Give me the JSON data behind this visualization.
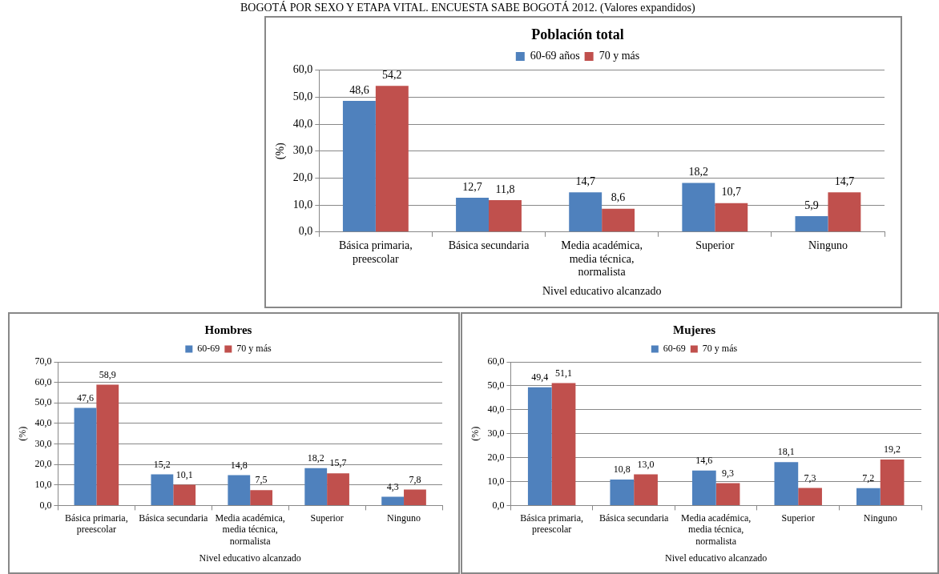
{
  "chart_data": [
    {
      "type": "bar",
      "title": "Población total",
      "ylabel": "(%)",
      "xlabel": "Nivel educativo alcanzado",
      "annotations": [
        "BOGOTÁ POR SEXO Y ETAPA VITAL. ENCUESTA SABE BOGOTÁ 2012. (Valores expandidos)"
      ],
      "categories": [
        "Básica primaria, preescolar",
        "Básica secundaria",
        "Media académica, media técnica, normalista",
        "Superior",
        "Ninguno"
      ],
      "series": [
        {
          "name": "60-69 años",
          "color": "#4f81bd",
          "values": [
            48.6,
            12.7,
            14.7,
            18.2,
            5.9
          ],
          "value_labels": [
            "48,6",
            "12,7",
            "14,7",
            "18,2",
            "5,9"
          ]
        },
        {
          "name": "70 y más",
          "color": "#c0504d",
          "values": [
            54.2,
            11.8,
            8.6,
            10.7,
            14.7
          ],
          "value_labels": [
            "54,2",
            "11,8",
            "8,6",
            "10,7",
            "14,7"
          ]
        }
      ],
      "ylim": [
        0,
        60
      ],
      "yticks": [
        {
          "value": 0,
          "label": "0,0"
        },
        {
          "value": 10,
          "label": "10,0"
        },
        {
          "value": 20,
          "label": "20,0"
        },
        {
          "value": 30,
          "label": "30,0"
        },
        {
          "value": 40,
          "label": "40,0"
        },
        {
          "value": 50,
          "label": "50,0"
        },
        {
          "value": 60,
          "label": "60,0"
        }
      ],
      "grid": "y",
      "legend": "top"
    },
    {
      "type": "bar",
      "title": "Hombres",
      "ylabel": "(%)",
      "xlabel": "Nivel educativo alcanzado",
      "categories": [
        "Básica primaria, preescolar",
        "Básica secundaria",
        "Media académica, media técnica, normalista",
        "Superior",
        "Ninguno"
      ],
      "series": [
        {
          "name": "60-69",
          "color": "#4f81bd",
          "values": [
            47.6,
            15.2,
            14.8,
            18.2,
            4.3
          ],
          "value_labels": [
            "47,6",
            "15,2",
            "14,8",
            "18,2",
            "4,3"
          ]
        },
        {
          "name": "70 y más",
          "color": "#c0504d",
          "values": [
            58.9,
            10.1,
            7.5,
            15.7,
            7.8
          ],
          "value_labels": [
            "58,9",
            "10,1",
            "7,5",
            "15,7",
            "7,8"
          ]
        }
      ],
      "ylim": [
        0,
        70
      ],
      "yticks": [
        {
          "value": 0,
          "label": "0,0"
        },
        {
          "value": 10,
          "label": "10,0"
        },
        {
          "value": 20,
          "label": "20,0"
        },
        {
          "value": 30,
          "label": "30,0"
        },
        {
          "value": 40,
          "label": "40,0"
        },
        {
          "value": 50,
          "label": "50,0"
        },
        {
          "value": 60,
          "label": "60,0"
        },
        {
          "value": 70,
          "label": "70,0"
        }
      ],
      "grid": "y",
      "legend": "top"
    },
    {
      "type": "bar",
      "title": "Mujeres",
      "ylabel": "(%)",
      "xlabel": "Nivel educativo alcanzado",
      "categories": [
        "Básica primaria, preescolar",
        "Básica secundaria",
        "Media académica, media técnica, normalista",
        "Superior",
        "Ninguno"
      ],
      "series": [
        {
          "name": "60-69",
          "color": "#4f81bd",
          "values": [
            49.4,
            10.8,
            14.6,
            18.1,
            7.2
          ],
          "value_labels": [
            "49,4",
            "10,8",
            "14,6",
            "18,1",
            "7,2"
          ]
        },
        {
          "name": "70 y más",
          "color": "#c0504d",
          "values": [
            51.1,
            13.0,
            9.3,
            7.3,
            19.2
          ],
          "value_labels": [
            "51,1",
            "13,0",
            "9,3",
            "7,3",
            "19,2"
          ]
        }
      ],
      "ylim": [
        0,
        60
      ],
      "yticks": [
        {
          "value": 0,
          "label": "0,0"
        },
        {
          "value": 10,
          "label": "10,0"
        },
        {
          "value": 20,
          "label": "20,0"
        },
        {
          "value": 30,
          "label": "30,0"
        },
        {
          "value": 40,
          "label": "40,0"
        },
        {
          "value": 50,
          "label": "50,0"
        },
        {
          "value": 60,
          "label": "60,0"
        }
      ],
      "grid": "y",
      "legend": "top"
    }
  ]
}
